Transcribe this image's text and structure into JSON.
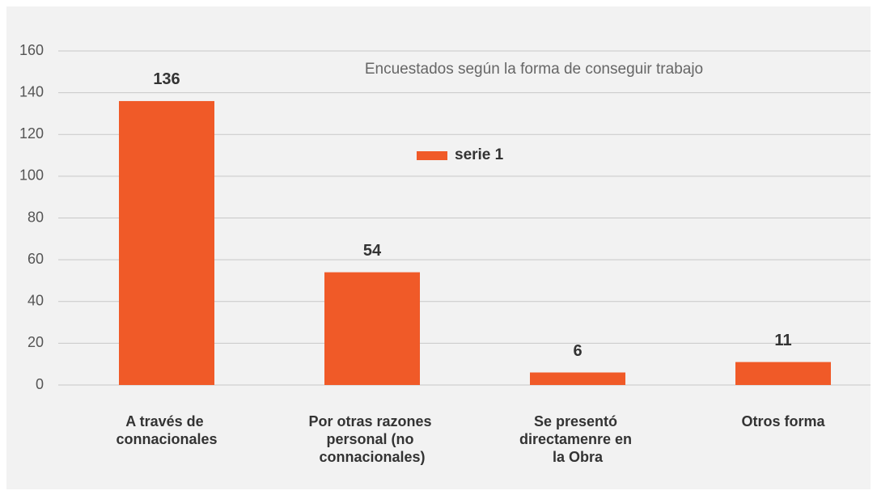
{
  "chart_data": {
    "type": "bar",
    "title": "Encuestados según la forma de conseguir trabajo",
    "categories": [
      "A través de connacionales",
      "Por otras razones personal (no connacionales)",
      "Se presentó directamenre en la Obra",
      "Otros forma"
    ],
    "series": [
      {
        "name": "serie 1",
        "color": "#f05a28",
        "values": [
          136,
          54,
          6,
          11
        ]
      }
    ],
    "ylim": [
      0,
      160
    ],
    "yticks": [
      0,
      20,
      40,
      60,
      80,
      100,
      120,
      140,
      160
    ],
    "grid": true,
    "legend": true,
    "data_labels": true
  }
}
